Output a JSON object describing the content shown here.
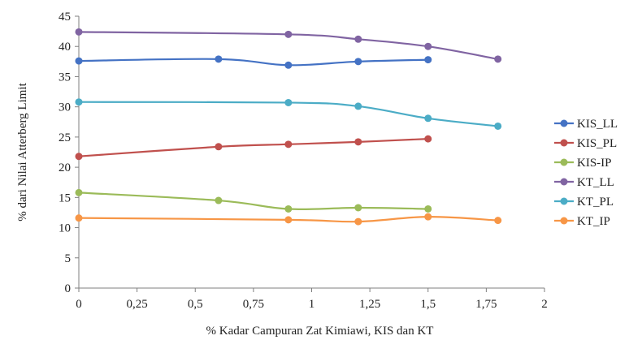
{
  "chart_data": {
    "type": "line",
    "title": "",
    "xlabel": "% Kadar Campuran Zat Kimiawi, KIS dan KT",
    "ylabel": "% dari Nilai Atterberg Limit",
    "xlim": [
      0,
      2
    ],
    "ylim": [
      0,
      45
    ],
    "x_ticks": [
      "0",
      "0,25",
      "0,5",
      "0,75",
      "1",
      "1,25",
      "1,5",
      "1,75",
      "2"
    ],
    "y_ticks": [
      "0",
      "5",
      "10",
      "15",
      "20",
      "25",
      "30",
      "35",
      "40",
      "45"
    ],
    "grid": false,
    "legend_position": "right",
    "series": [
      {
        "name": "KIS_LL",
        "color": "#4472C4",
        "x": [
          0,
          0.6,
          0.9,
          1.2,
          1.5
        ],
        "values": [
          37.6,
          37.9,
          36.9,
          37.5,
          37.8
        ]
      },
      {
        "name": "KIS_PL",
        "color": "#C0504D",
        "x": [
          0,
          0.6,
          0.9,
          1.2,
          1.5
        ],
        "values": [
          21.8,
          23.4,
          23.8,
          24.2,
          24.7
        ]
      },
      {
        "name": "KIS-IP",
        "color": "#9BBB59",
        "x": [
          0,
          0.6,
          0.9,
          1.2,
          1.5
        ],
        "values": [
          15.8,
          14.5,
          13.1,
          13.3,
          13.1
        ]
      },
      {
        "name": "KT_LL",
        "color": "#8064A2",
        "x": [
          0,
          0.9,
          1.2,
          1.5,
          1.8
        ],
        "values": [
          42.4,
          42.0,
          41.2,
          40.0,
          37.9
        ]
      },
      {
        "name": "KT_PL",
        "color": "#4BACC6",
        "x": [
          0,
          0.9,
          1.2,
          1.5,
          1.8
        ],
        "values": [
          30.8,
          30.7,
          30.1,
          28.1,
          26.8
        ]
      },
      {
        "name": "KT_IP",
        "color": "#F79646",
        "x": [
          0,
          0.9,
          1.2,
          1.5,
          1.8
        ],
        "values": [
          11.6,
          11.3,
          11.0,
          11.8,
          11.2
        ]
      }
    ]
  }
}
